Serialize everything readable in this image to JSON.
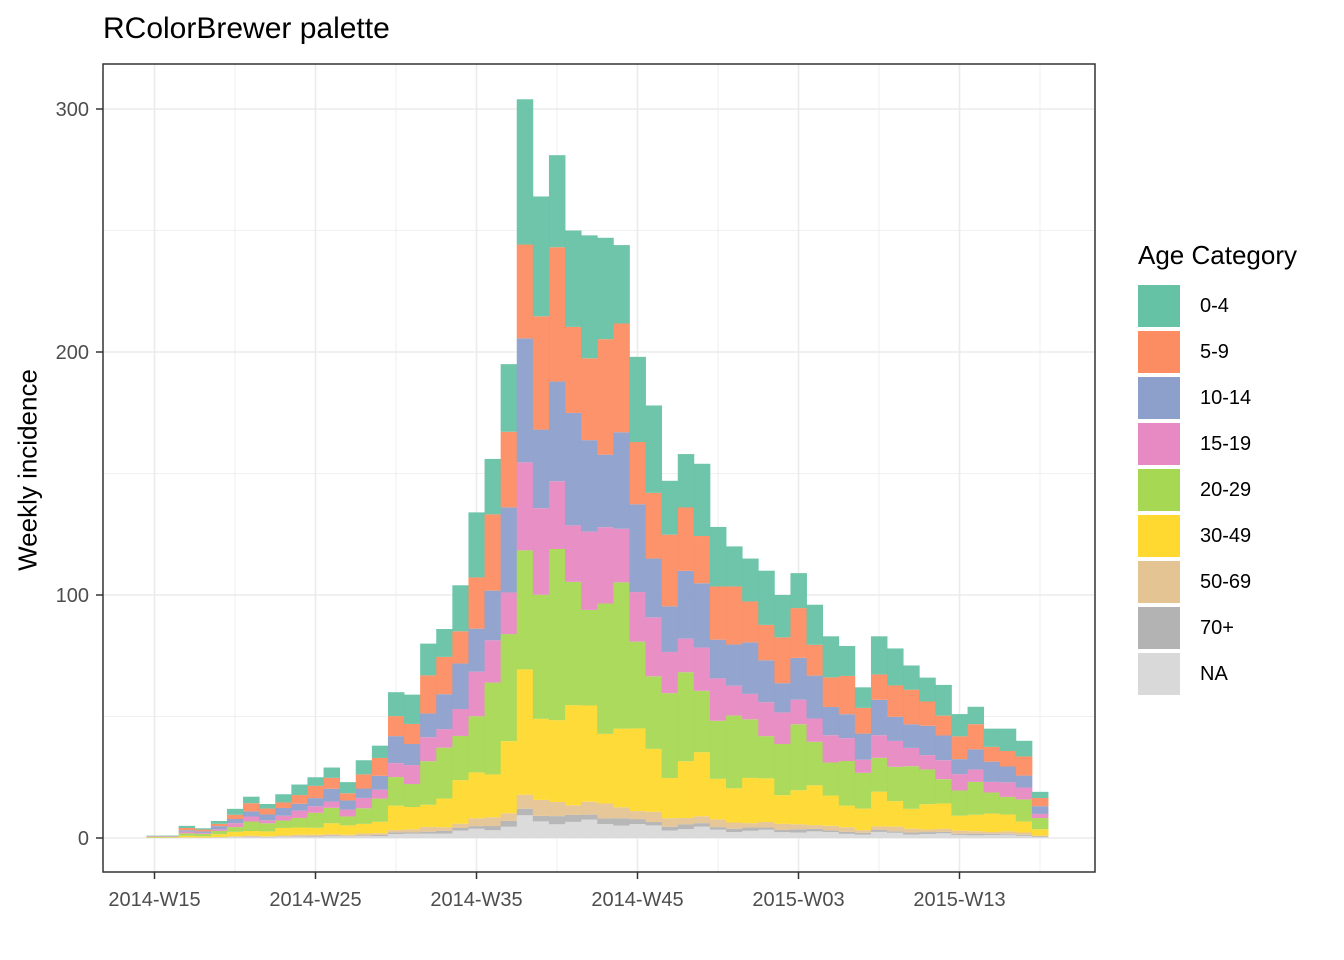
{
  "chart_data": {
    "type": "bar",
    "subtype": "stacked-weekly-histogram",
    "title": "RColorBrewer palette",
    "xlabel": "",
    "ylabel": "Weekly incidence",
    "ylim": [
      -13,
      313
    ],
    "yticks": [
      0,
      100,
      200,
      300
    ],
    "xticks": [
      "2014-W15",
      "2014-W25",
      "2014-W35",
      "2014-W45",
      "2015-W03",
      "2015-W13"
    ],
    "grid": true,
    "legend": {
      "title": "Age Category",
      "position": "right"
    },
    "weeks": [
      "2014-W15",
      "2014-W16",
      "2014-W17",
      "2014-W18",
      "2014-W19",
      "2014-W20",
      "2014-W21",
      "2014-W22",
      "2014-W23",
      "2014-W24",
      "2014-W25",
      "2014-W26",
      "2014-W27",
      "2014-W28",
      "2014-W29",
      "2014-W30",
      "2014-W31",
      "2014-W32",
      "2014-W33",
      "2014-W34",
      "2014-W35",
      "2014-W36",
      "2014-W37",
      "2014-W38",
      "2014-W39",
      "2014-W40",
      "2014-W41",
      "2014-W42",
      "2014-W43",
      "2014-W44",
      "2014-W45",
      "2014-W46",
      "2014-W47",
      "2014-W48",
      "2014-W49",
      "2014-W50",
      "2014-W51",
      "2014-W52",
      "2015-W01",
      "2015-W02",
      "2015-W03",
      "2015-W04",
      "2015-W05",
      "2015-W06",
      "2015-W07",
      "2015-W08",
      "2015-W09",
      "2015-W10",
      "2015-W11",
      "2015-W12",
      "2015-W13",
      "2015-W14",
      "2015-W15",
      "2015-W16",
      "2015-W17",
      "2015-W18"
    ],
    "totals": [
      1,
      1,
      5,
      4,
      7,
      12,
      17,
      14,
      18,
      22,
      25,
      29,
      23,
      32,
      38,
      60,
      59,
      80,
      86,
      104,
      134,
      156,
      195,
      304,
      264,
      281,
      250,
      248,
      247,
      244,
      198,
      178,
      147,
      158,
      154,
      128,
      120,
      115,
      110,
      100,
      109,
      96,
      83,
      79,
      62,
      83,
      78,
      71,
      66,
      63,
      51,
      54,
      45,
      45,
      40,
      19
    ],
    "series": [
      {
        "name": "0-4",
        "color": "#66c2a5"
      },
      {
        "name": "5-9",
        "color": "#fc8d62"
      },
      {
        "name": "10-14",
        "color": "#8da0cb"
      },
      {
        "name": "15-19",
        "color": "#e78ac3"
      },
      {
        "name": "20-29",
        "color": "#a6d854"
      },
      {
        "name": "30-49",
        "color": "#ffd92f"
      },
      {
        "name": "50-69",
        "color": "#e5c494"
      },
      {
        "name": "70+",
        "color": "#b3b3b3"
      },
      {
        "name": "NA",
        "color": "#d9d9d9"
      }
    ]
  }
}
